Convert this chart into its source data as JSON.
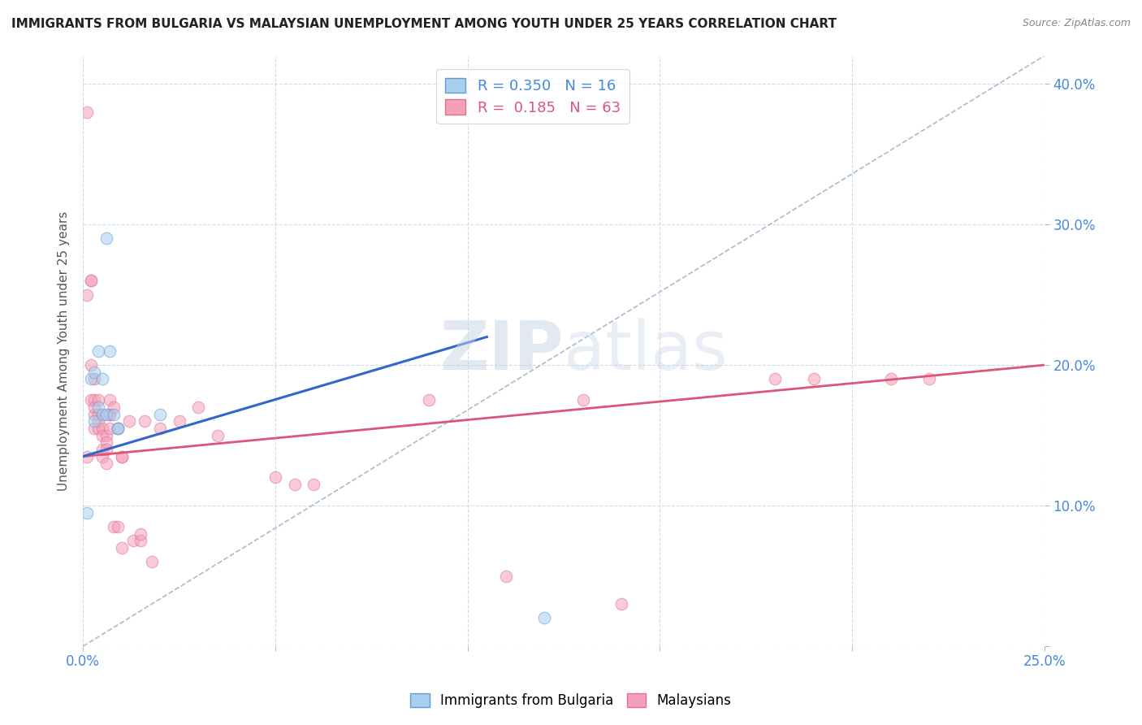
{
  "title": "IMMIGRANTS FROM BULGARIA VS MALAYSIAN UNEMPLOYMENT AMONG YOUTH UNDER 25 YEARS CORRELATION CHART",
  "source": "Source: ZipAtlas.com",
  "ylabel": "Unemployment Among Youth under 25 years",
  "xlim": [
    0.0,
    0.25
  ],
  "ylim": [
    0.0,
    0.42
  ],
  "xticks": [
    0.0,
    0.05,
    0.1,
    0.15,
    0.2,
    0.25
  ],
  "xtick_labels": [
    "0.0%",
    "",
    "",
    "",
    "",
    "25.0%"
  ],
  "yticks": [
    0.0,
    0.1,
    0.2,
    0.3,
    0.4
  ],
  "ytick_labels_right": [
    "",
    "10.0%",
    "20.0%",
    "30.0%",
    "40.0%"
  ],
  "watermark": "ZIPatlas",
  "bulgaria_scatter_x": [
    0.001,
    0.002,
    0.003,
    0.003,
    0.004,
    0.004,
    0.005,
    0.005,
    0.006,
    0.006,
    0.007,
    0.008,
    0.009,
    0.009,
    0.02,
    0.12
  ],
  "bulgaria_scatter_y": [
    0.095,
    0.19,
    0.16,
    0.195,
    0.17,
    0.21,
    0.19,
    0.165,
    0.29,
    0.165,
    0.21,
    0.165,
    0.155,
    0.155,
    0.165,
    0.02
  ],
  "malaysia_scatter_x": [
    0.001,
    0.001,
    0.001,
    0.002,
    0.002,
    0.002,
    0.002,
    0.003,
    0.003,
    0.003,
    0.003,
    0.003,
    0.004,
    0.004,
    0.004,
    0.004,
    0.005,
    0.005,
    0.005,
    0.005,
    0.006,
    0.006,
    0.006,
    0.006,
    0.007,
    0.007,
    0.007,
    0.007,
    0.008,
    0.008,
    0.009,
    0.009,
    0.01,
    0.01,
    0.01,
    0.012,
    0.013,
    0.015,
    0.015,
    0.016,
    0.018,
    0.02,
    0.025,
    0.03,
    0.035,
    0.05,
    0.055,
    0.06,
    0.09,
    0.11,
    0.13,
    0.14,
    0.18,
    0.19,
    0.21,
    0.22
  ],
  "malaysia_scatter_y": [
    0.38,
    0.25,
    0.135,
    0.26,
    0.26,
    0.2,
    0.175,
    0.19,
    0.175,
    0.165,
    0.17,
    0.155,
    0.175,
    0.165,
    0.155,
    0.16,
    0.155,
    0.15,
    0.14,
    0.135,
    0.15,
    0.145,
    0.14,
    0.13,
    0.175,
    0.165,
    0.165,
    0.155,
    0.17,
    0.085,
    0.155,
    0.085,
    0.135,
    0.135,
    0.07,
    0.16,
    0.075,
    0.075,
    0.08,
    0.16,
    0.06,
    0.155,
    0.16,
    0.17,
    0.15,
    0.12,
    0.115,
    0.115,
    0.175,
    0.05,
    0.175,
    0.03,
    0.19,
    0.19,
    0.19,
    0.19
  ],
  "bulgaria_line_x": [
    0.0,
    0.105
  ],
  "bulgaria_line_y": [
    0.135,
    0.22
  ],
  "malaysia_line_x": [
    0.0,
    0.25
  ],
  "malaysia_line_y": [
    0.135,
    0.2
  ],
  "ref_line_x": [
    0.0,
    0.25
  ],
  "ref_line_y": [
    0.0,
    0.42
  ],
  "scatter_size": 110,
  "scatter_alpha": 0.55,
  "bulgaria_color": "#a8cef0",
  "bulgaria_edge": "#6699cc",
  "malaysia_color": "#f5a0b8",
  "malaysia_edge": "#dd7090",
  "trend_bulgaria_color": "#3366cc",
  "trend_malaysia_color": "#dd5577",
  "ref_line_color": "#aabbcc",
  "grid_color": "#c8d8e8",
  "tick_color": "#4488dd",
  "ylabel_color": "#555555",
  "title_color": "#222222",
  "source_color": "#888888"
}
